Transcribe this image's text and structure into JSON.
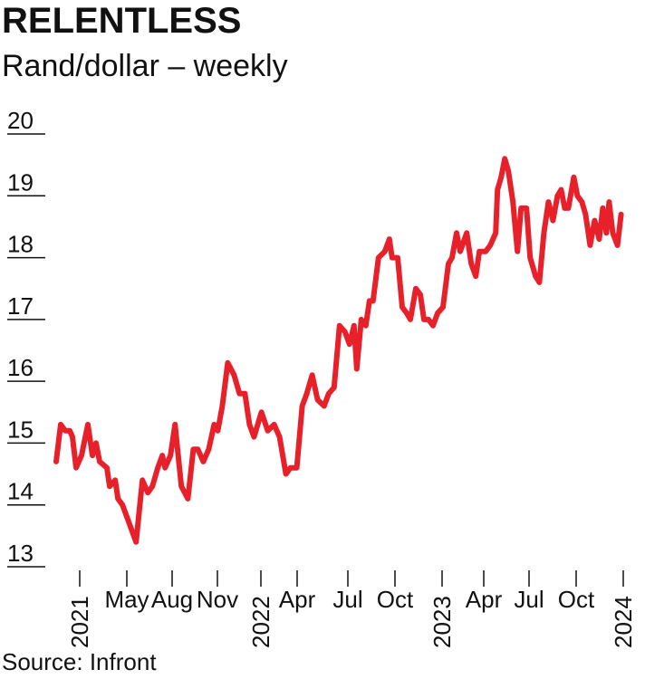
{
  "chart_data": {
    "type": "line",
    "title": "RELENTLESS",
    "subtitle": "Rand/dollar – weekly",
    "source": "Source: Infront",
    "x": [
      2020.87,
      2020.895,
      2020.92,
      2020.945,
      2020.96,
      2020.98,
      2021.01,
      2021.045,
      2021.07,
      2021.09,
      2021.11,
      2021.15,
      2021.165,
      2021.196,
      2021.211,
      2021.236,
      2021.261,
      2021.311,
      2021.346,
      2021.376,
      2021.401,
      2021.431,
      2021.456,
      2021.471,
      2021.501,
      2021.526,
      2021.561,
      2021.597,
      2021.627,
      2021.652,
      2021.682,
      2021.712,
      2021.742,
      2021.762,
      2021.787,
      2021.817,
      2021.852,
      2021.882,
      2021.912,
      2021.937,
      2021.962,
      2022.003,
      2022.038,
      2022.073,
      2022.103,
      2022.138,
      2022.163,
      2022.198,
      2022.228,
      2022.253,
      2022.283,
      2022.313,
      2022.349,
      2022.374,
      2022.404,
      2022.434,
      2022.464,
      2022.489,
      2022.514,
      2022.529,
      2022.554,
      2022.579,
      2022.599,
      2022.619,
      2022.649,
      2022.684,
      2022.709,
      2022.724,
      2022.755,
      2022.78,
      2022.805,
      2022.825,
      2022.855,
      2022.88,
      2022.9,
      2022.925,
      2022.95,
      2022.975,
      2023.005,
      2023.035,
      2023.055,
      2023.08,
      2023.1,
      2023.136,
      2023.161,
      2023.186,
      2023.206,
      2023.241,
      2023.266,
      2023.296,
      2023.306,
      2023.326,
      2023.346,
      2023.366,
      2023.391,
      2023.416,
      2023.436,
      2023.466,
      2023.486,
      2023.516,
      2023.537,
      2023.562,
      2023.587,
      2023.612,
      2023.637,
      2023.657,
      2023.677,
      2023.697,
      2023.727,
      2023.747,
      2023.772,
      2023.792,
      2023.817,
      2023.842,
      2023.867,
      2023.887,
      2023.907,
      2023.922,
      2023.942,
      2023.968,
      2023.988
    ],
    "series": [
      {
        "name": "Rand/dollar",
        "color": "#e8202a",
        "values": [
          14.7,
          15.3,
          15.2,
          15.2,
          15.1,
          14.6,
          14.8,
          15.3,
          14.8,
          15.0,
          14.7,
          14.6,
          14.3,
          14.4,
          14.1,
          14.0,
          13.8,
          13.4,
          14.4,
          14.2,
          14.3,
          14.6,
          14.8,
          14.6,
          14.8,
          15.3,
          14.3,
          14.1,
          14.9,
          14.9,
          14.7,
          14.9,
          15.3,
          15.2,
          15.6,
          16.3,
          16.1,
          15.8,
          15.8,
          15.3,
          15.1,
          15.5,
          15.2,
          15.3,
          15.1,
          14.5,
          14.6,
          14.6,
          15.6,
          15.8,
          16.1,
          15.7,
          15.6,
          15.8,
          15.9,
          16.9,
          16.8,
          16.6,
          16.9,
          16.2,
          17.0,
          16.9,
          17.3,
          17.3,
          18.0,
          18.1,
          18.3,
          18.0,
          18.0,
          17.2,
          17.1,
          17.0,
          17.5,
          17.4,
          17.0,
          17.0,
          16.9,
          17.1,
          17.2,
          17.9,
          18.0,
          18.4,
          18.1,
          18.4,
          17.9,
          17.7,
          18.1,
          18.1,
          18.2,
          18.4,
          19.1,
          19.3,
          19.6,
          19.4,
          18.9,
          18.1,
          18.8,
          18.8,
          18.0,
          17.7,
          17.6,
          18.4,
          18.9,
          18.6,
          19.0,
          19.1,
          18.8,
          18.8,
          19.3,
          19.0,
          18.9,
          18.7,
          18.2,
          18.6,
          18.3,
          18.8,
          18.4,
          18.9,
          18.4,
          18.2,
          18.7
        ]
      }
    ],
    "xlim": [
      2020.87,
      2024.0
    ],
    "xticks": [
      2021,
      {
        "value": 2021.26,
        "label": "May"
      },
      {
        "value": 2021.51,
        "label": "Aug"
      },
      {
        "value": 2021.76,
        "label": "Nov"
      },
      2022,
      {
        "value": 2022.2,
        "label": "Apr"
      },
      {
        "value": 2022.48,
        "label": "Jul"
      },
      {
        "value": 2022.74,
        "label": "Oct"
      },
      2023,
      {
        "value": 2023.23,
        "label": "Apr"
      },
      {
        "value": 2023.48,
        "label": "Jul"
      },
      {
        "value": 2023.74,
        "label": "Oct"
      },
      2024
    ],
    "ylim": [
      13,
      20
    ],
    "yticks": [
      13,
      14,
      15,
      16,
      17,
      18,
      19,
      20
    ]
  }
}
